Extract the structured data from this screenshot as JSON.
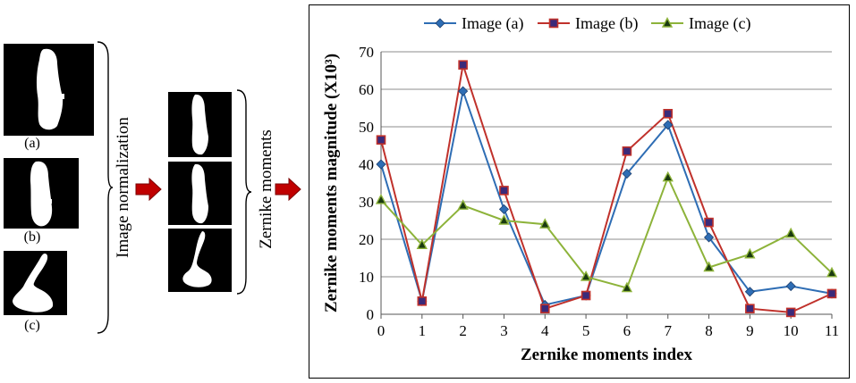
{
  "figure": {
    "captions": [
      "(a)",
      "(b)",
      "(c)"
    ],
    "step1_label": "Image normalization",
    "step2_label": "Zernike moments",
    "arrow_color": "#c00000"
  },
  "chart_data": {
    "type": "line",
    "x": [
      0,
      1,
      2,
      3,
      4,
      5,
      6,
      7,
      8,
      9,
      10,
      11
    ],
    "xlabel": "Zernike moments index",
    "ylabel": "Zernike moments magnitude (X10³)",
    "xlim": [
      0,
      11
    ],
    "ylim": [
      0,
      70
    ],
    "yticks": [
      0,
      10,
      20,
      30,
      40,
      50,
      60,
      70
    ],
    "grid": "horizontal",
    "legend_position": "top",
    "series": [
      {
        "name": "Image (a)",
        "color": "#2e6db4",
        "marker": "diamond",
        "values": [
          40,
          3.5,
          59.5,
          28,
          2.5,
          5,
          37.5,
          50.5,
          20.5,
          6,
          7.5,
          5.5
        ]
      },
      {
        "name": "Image (b)",
        "color": "#c0312b",
        "marker": "square",
        "values": [
          46.5,
          3.5,
          66.5,
          33,
          1.5,
          5,
          43.5,
          53.5,
          24.5,
          1.5,
          0.5,
          5.5
        ]
      },
      {
        "name": "Image (c)",
        "color": "#8db33a",
        "marker": "triangle",
        "values": [
          30.5,
          18.5,
          29,
          25,
          24,
          10,
          7,
          36.5,
          12.5,
          16,
          21.5,
          11
        ]
      }
    ]
  }
}
